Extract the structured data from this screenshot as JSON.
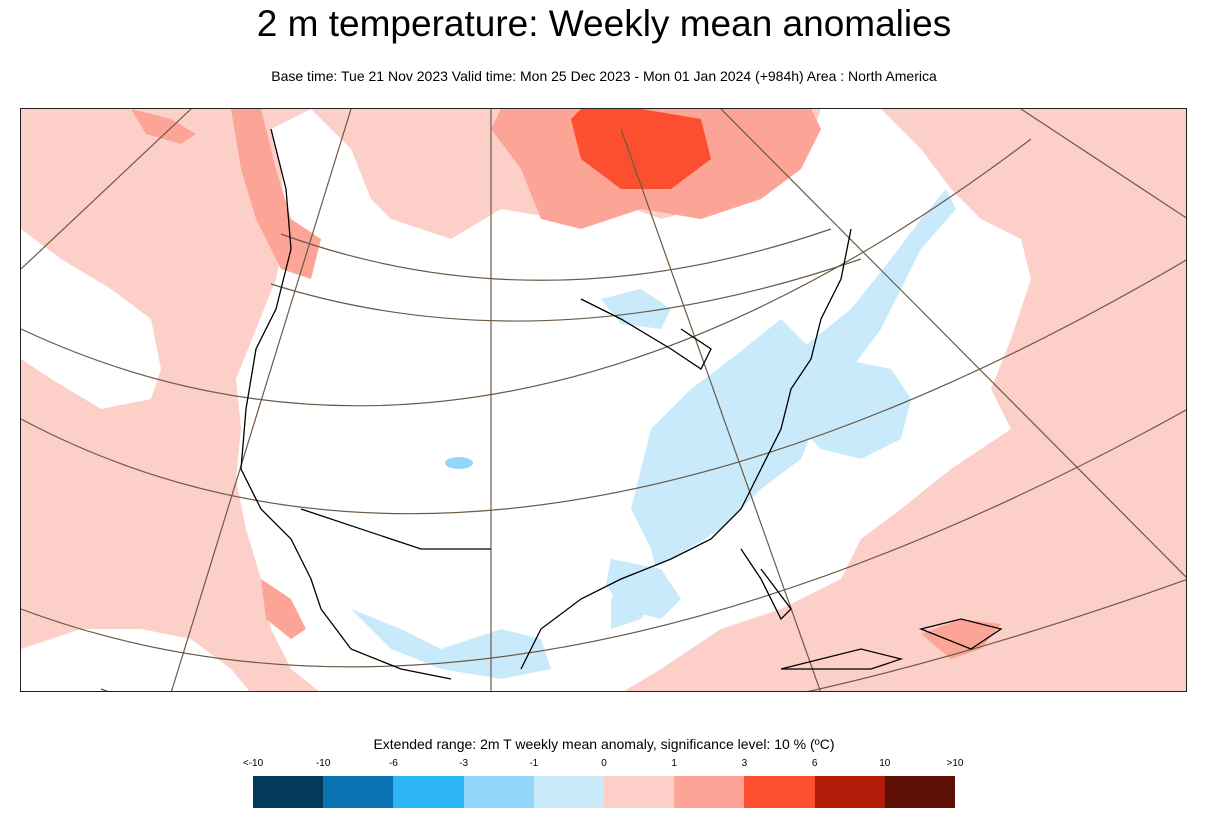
{
  "title": "2 m temperature: Weekly mean anomalies",
  "subtitle": "Base time: Tue 21 Nov 2023 Valid time: Mon 25 Dec 2023 - Mon 01 Jan 2024 (+984h) Area : North America",
  "legend": {
    "title": "Extended range: 2m T weekly mean anomaly, significance level: 10 % (ºC)",
    "labels": [
      "<-10",
      "-10",
      "-6",
      "-3",
      "-1",
      "0",
      "1",
      "3",
      "6",
      "10",
      ">10"
    ],
    "colors": [
      "#053a5a",
      "#0a74b3",
      "#2eb5f5",
      "#93d6fa",
      "#c8eafb",
      "#fccfc8",
      "#fca596",
      "#fb4f2f",
      "#b21b08",
      "#5e0f05"
    ]
  },
  "map": {
    "area": "North America",
    "colors": {
      "ocean_anomaly": "#fccfc8",
      "warm_anomaly": "#fca596",
      "strong_warm_anomaly": "#fb4f2f",
      "cold_anomaly": "#c8eafb",
      "neutral": "#ffffff",
      "coastline": "#000000",
      "graticule": "#6b5a45"
    }
  }
}
